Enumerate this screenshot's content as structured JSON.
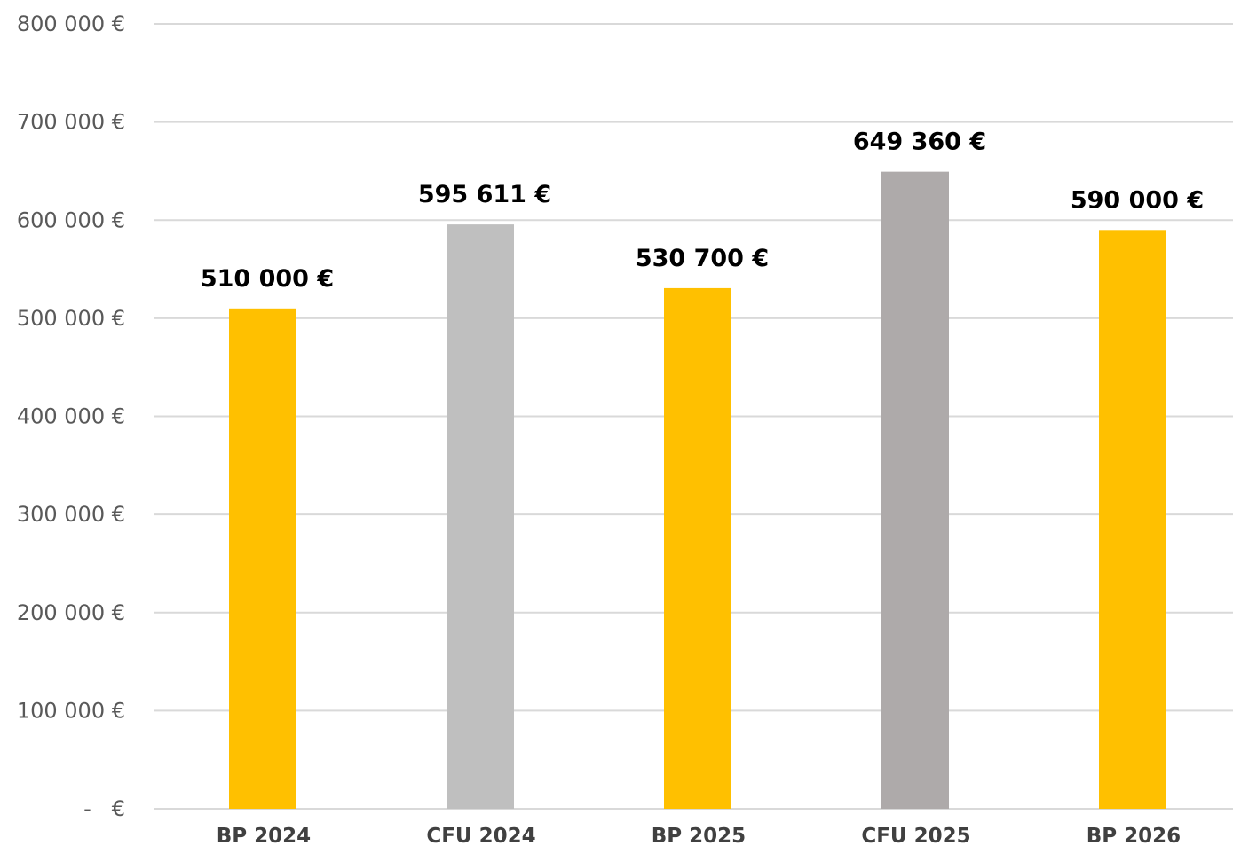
{
  "chart_data": {
    "type": "bar",
    "title": "",
    "xlabel": "",
    "ylabel": "",
    "ylim": [
      0,
      800000
    ],
    "y_ticks": [
      0,
      100000,
      200000,
      300000,
      400000,
      500000,
      600000,
      700000,
      800000
    ],
    "y_tick_labels": [
      "-   €",
      "100 000 €",
      "200 000 €",
      "300 000 €",
      "400 000 €",
      "500 000 €",
      "600 000 €",
      "700 000 €",
      "800 000 €"
    ],
    "grid": true,
    "legend": "none",
    "categories": [
      "BP 2024",
      "CFU 2024",
      "BP 2025",
      "CFU 2025",
      "BP 2026"
    ],
    "values": [
      510000,
      595611,
      530700,
      649360,
      590000
    ],
    "data_labels": [
      "510 000 €",
      "595 611 €",
      "530 700 €",
      "649 360 €",
      "590 000 €"
    ],
    "bar_colors": [
      "#ffc000",
      "#bfbfbf",
      "#ffc000",
      "#aeaaaa",
      "#ffc000"
    ]
  }
}
